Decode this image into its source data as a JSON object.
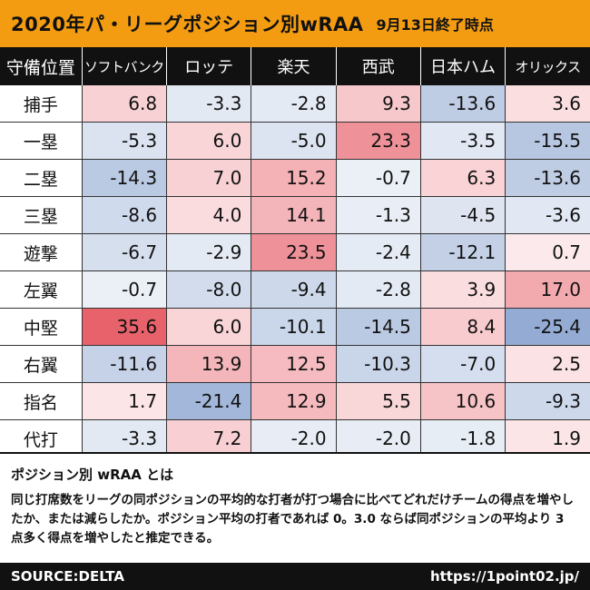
{
  "header": {
    "title": "2020年パ・リーグポジション別wRAA",
    "date": "9月13日終了時点"
  },
  "chart_data": {
    "type": "heatmap",
    "title": "2020年パ・リーグポジション別wRAA",
    "row_header_label": "守備位置",
    "columns": [
      "ソフトバンク",
      "ロッテ",
      "楽天",
      "西武",
      "日本ハム",
      "オリックス"
    ],
    "rows": [
      "捕手",
      "一塁",
      "二塁",
      "三塁",
      "遊撃",
      "左翼",
      "中堅",
      "右翼",
      "指名",
      "代打"
    ],
    "values": [
      [
        6.8,
        -3.3,
        -2.8,
        9.3,
        -13.6,
        3.6
      ],
      [
        -5.3,
        6.0,
        -5.0,
        23.3,
        -3.5,
        -15.5
      ],
      [
        -14.3,
        7.0,
        15.2,
        -0.7,
        6.3,
        -13.6
      ],
      [
        -8.6,
        4.0,
        14.1,
        -1.3,
        -4.5,
        -3.6
      ],
      [
        -6.7,
        -2.9,
        23.5,
        -2.4,
        -12.1,
        0.7
      ],
      [
        -0.7,
        -8.0,
        -9.4,
        -2.8,
        3.9,
        17.0
      ],
      [
        35.6,
        6.0,
        -10.1,
        -14.5,
        8.4,
        -25.4
      ],
      [
        -11.6,
        13.9,
        12.5,
        -10.3,
        -7.0,
        2.5
      ],
      [
        1.7,
        -21.4,
        12.9,
        5.5,
        10.6,
        -9.3
      ],
      [
        -3.3,
        7.2,
        -2.0,
        -2.0,
        -1.8,
        1.9
      ]
    ],
    "color_positive": "#e8606a",
    "color_negative": "#6f8fc4",
    "color_scale_max": 36
  },
  "description": {
    "heading": "ポジション別 wRAA とは",
    "body": "同じ打席数をリーグの同ポジションの平均的な打者が打つ場合に比べてどれだけチームの得点を増やしたか、または減らしたか。ポジション平均の打者であれば 0。3.0 ならば同ポジションの平均より 3 点多く得点を増やしたと推定できる。"
  },
  "footer": {
    "source": "SOURCE:DELTA",
    "url": "https://1point02.jp/"
  }
}
